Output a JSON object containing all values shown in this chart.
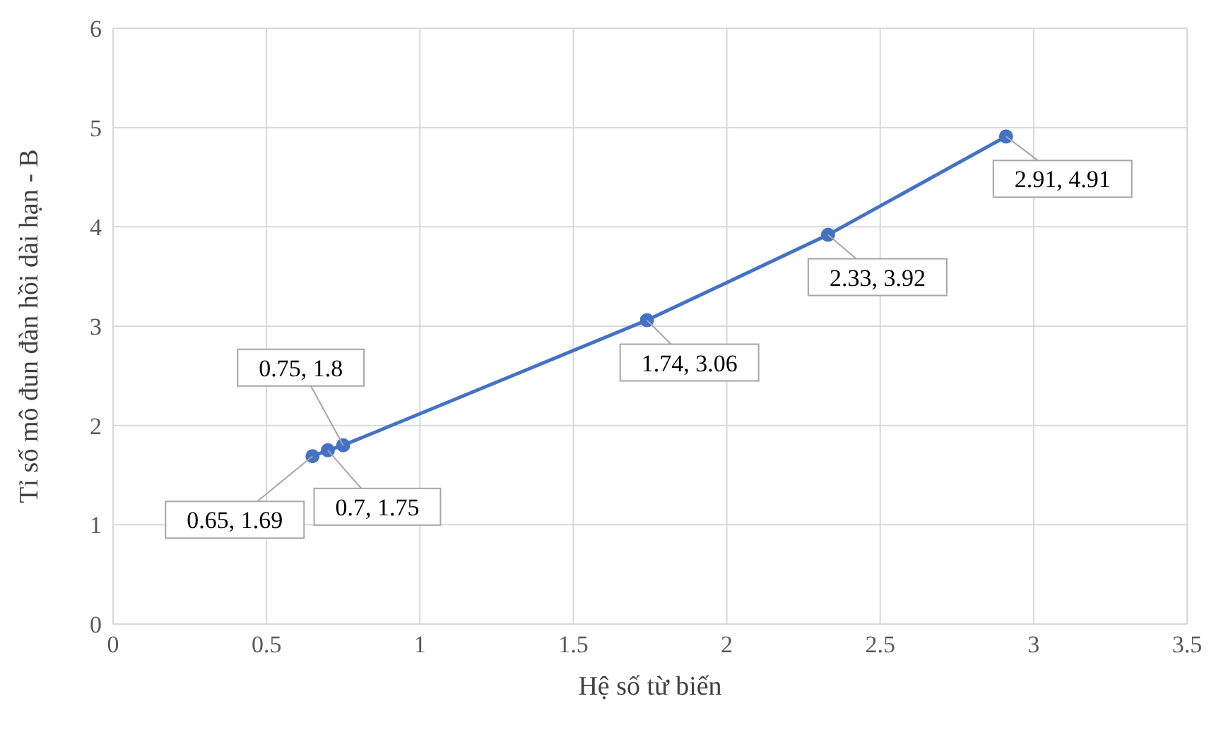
{
  "chart_data": {
    "type": "line",
    "xlabel": "Hệ số từ biến",
    "ylabel": "Tỉ số mô đun đàn hồi dài hạn - B",
    "x": [
      0.65,
      0.7,
      0.75,
      1.74,
      2.33,
      2.91
    ],
    "series": [
      {
        "color": "#4472c4",
        "values": [
          1.69,
          1.75,
          1.8,
          3.06,
          3.92,
          4.91
        ],
        "value_labels": [
          "0.65, 1.69",
          "0.7, 1.75",
          "0.75, 1.8",
          "1.74, 3.06",
          "2.33, 3.92",
          "2.91, 4.91"
        ]
      }
    ],
    "xlim": [
      0,
      3.5
    ],
    "xticks": [
      0,
      0.5,
      1,
      1.5,
      2,
      2.5,
      3,
      3.5
    ],
    "ylim": [
      0,
      6
    ],
    "yticks": [
      0,
      1,
      2,
      3,
      4,
      5,
      6
    ],
    "grid": true,
    "legend": false,
    "marker": "circle",
    "line_style": "solid"
  }
}
